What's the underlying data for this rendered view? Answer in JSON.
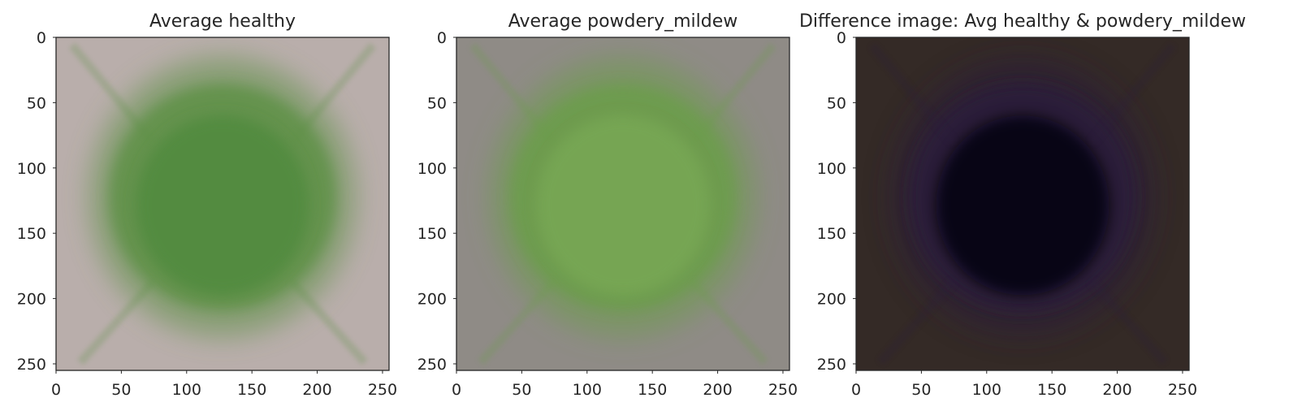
{
  "chart_data": [
    {
      "type": "heatmap",
      "title": "Average healthy",
      "xlim": [
        0,
        255
      ],
      "ylim": [
        255,
        0
      ],
      "xticks": [
        "0",
        "50",
        "100",
        "150",
        "200",
        "250"
      ],
      "yticks": [
        "0",
        "50",
        "100",
        "150",
        "200",
        "250"
      ],
      "colors": {
        "background": "#b9aeab",
        "leaf": "#5e9147",
        "leaf_core": "#4f8a3e",
        "vein": "#86a85c"
      }
    },
    {
      "type": "heatmap",
      "title": "Average powdery_mildew",
      "xlim": [
        0,
        255
      ],
      "ylim": [
        255,
        0
      ],
      "xticks": [
        "0",
        "50",
        "100",
        "150",
        "200",
        "250"
      ],
      "yticks": [
        "0",
        "50",
        "100",
        "150",
        "200",
        "250"
      ],
      "colors": {
        "background": "#8f8b86",
        "leaf": "#6c9d4b",
        "leaf_core": "#78a855",
        "vein": "#8fb06a"
      }
    },
    {
      "type": "heatmap",
      "title": "Difference image: Avg healthy & powdery_mildew",
      "xlim": [
        0,
        255
      ],
      "ylim": [
        255,
        0
      ],
      "xticks": [
        "0",
        "50",
        "100",
        "150",
        "200",
        "250"
      ],
      "yticks": [
        "0",
        "50",
        "100",
        "150",
        "200",
        "250"
      ],
      "colors": {
        "background": "#342a26",
        "leaf": "#2b1d3a",
        "leaf_core": "#050307",
        "vein": "#1a2418"
      }
    }
  ]
}
